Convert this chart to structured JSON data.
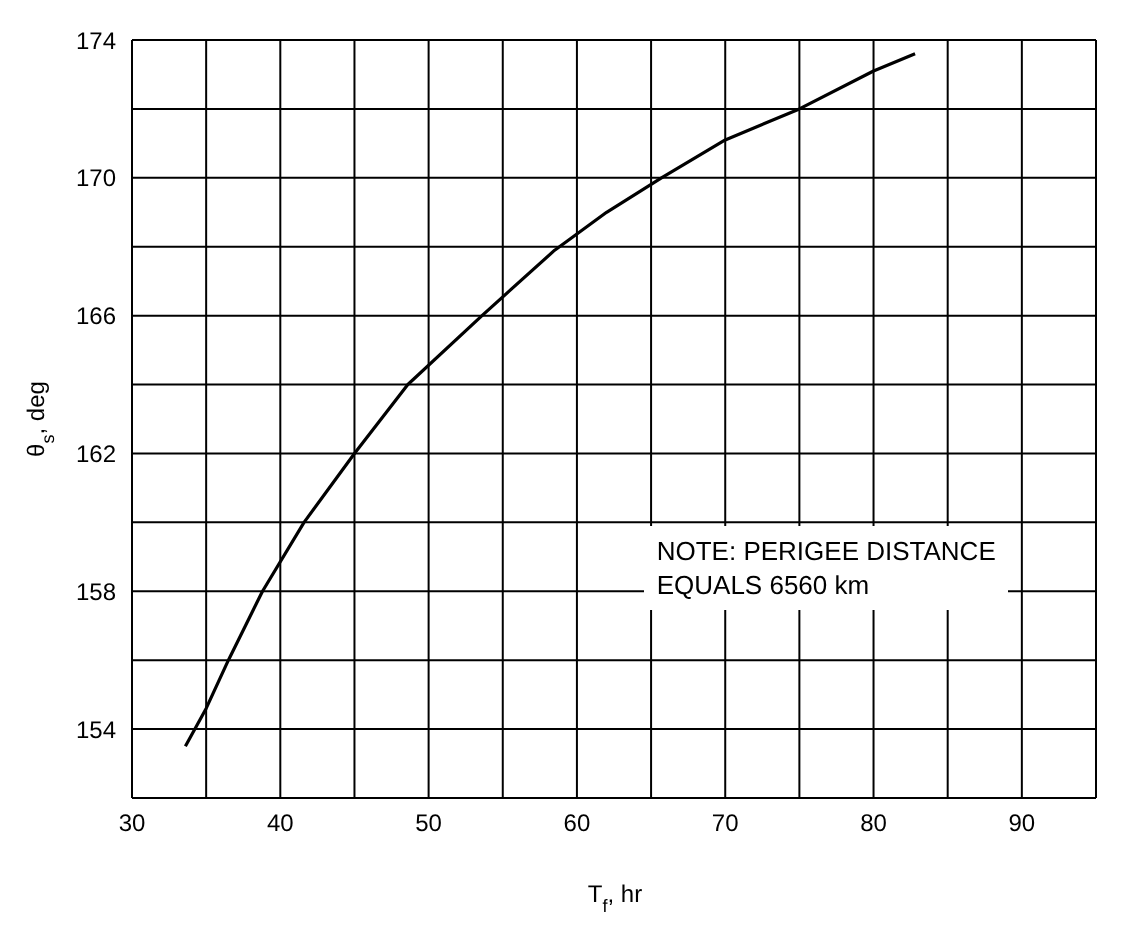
{
  "chart_data": {
    "type": "line",
    "xlabel": "T$_{f}$, hr",
    "ylabel": "θ$_{s}$, deg",
    "x": [
      33.6,
      35,
      36.5,
      38.8,
      41.6,
      45,
      48.6,
      53.6,
      58.5,
      62,
      65.7,
      70,
      75,
      80,
      82.8
    ],
    "series": [
      {
        "color": "#000000",
        "values": [
          153.5,
          154.6,
          156,
          158,
          160,
          162,
          164,
          166,
          167.9,
          169,
          170,
          171.1,
          172,
          173.1,
          173.6
        ]
      }
    ],
    "xlim": [
      30,
      95
    ],
    "xticks": [
      30,
      {
        "value": 35,
        "label": null
      },
      40,
      {
        "value": 45,
        "label": null
      },
      50,
      {
        "value": 55,
        "label": null
      },
      60,
      {
        "value": 65,
        "label": null
      },
      70,
      {
        "value": 75,
        "label": null
      },
      80,
      {
        "value": 85,
        "label": null
      },
      90
    ],
    "ylim": [
      152,
      174
    ],
    "yticks": [
      {
        "value": 152,
        "label": null
      },
      154,
      {
        "value": 156,
        "label": null
      },
      158,
      {
        "value": 160,
        "label": null
      },
      162,
      {
        "value": 164,
        "label": null
      },
      166,
      {
        "value": 168,
        "label": null
      },
      170,
      {
        "value": 172,
        "label": null
      },
      174
    ],
    "grid": true,
    "legend": false,
    "marker": "none",
    "line_style": "solid",
    "annotations": [
      "NOTE: PERIGEE DISTANCE\nEQUALS 6560 km"
    ]
  }
}
